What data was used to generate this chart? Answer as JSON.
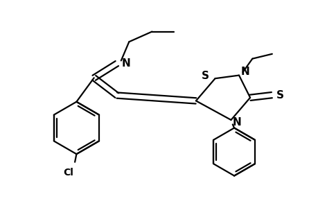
{
  "background_color": "#ffffff",
  "line_color": "#000000",
  "line_width": 1.6,
  "fig_width": 4.6,
  "fig_height": 3.0,
  "dpi": 100,
  "xlim": [
    0,
    10
  ],
  "ylim": [
    0,
    6.5
  ],
  "font_size": 11,
  "font_weight": "bold"
}
